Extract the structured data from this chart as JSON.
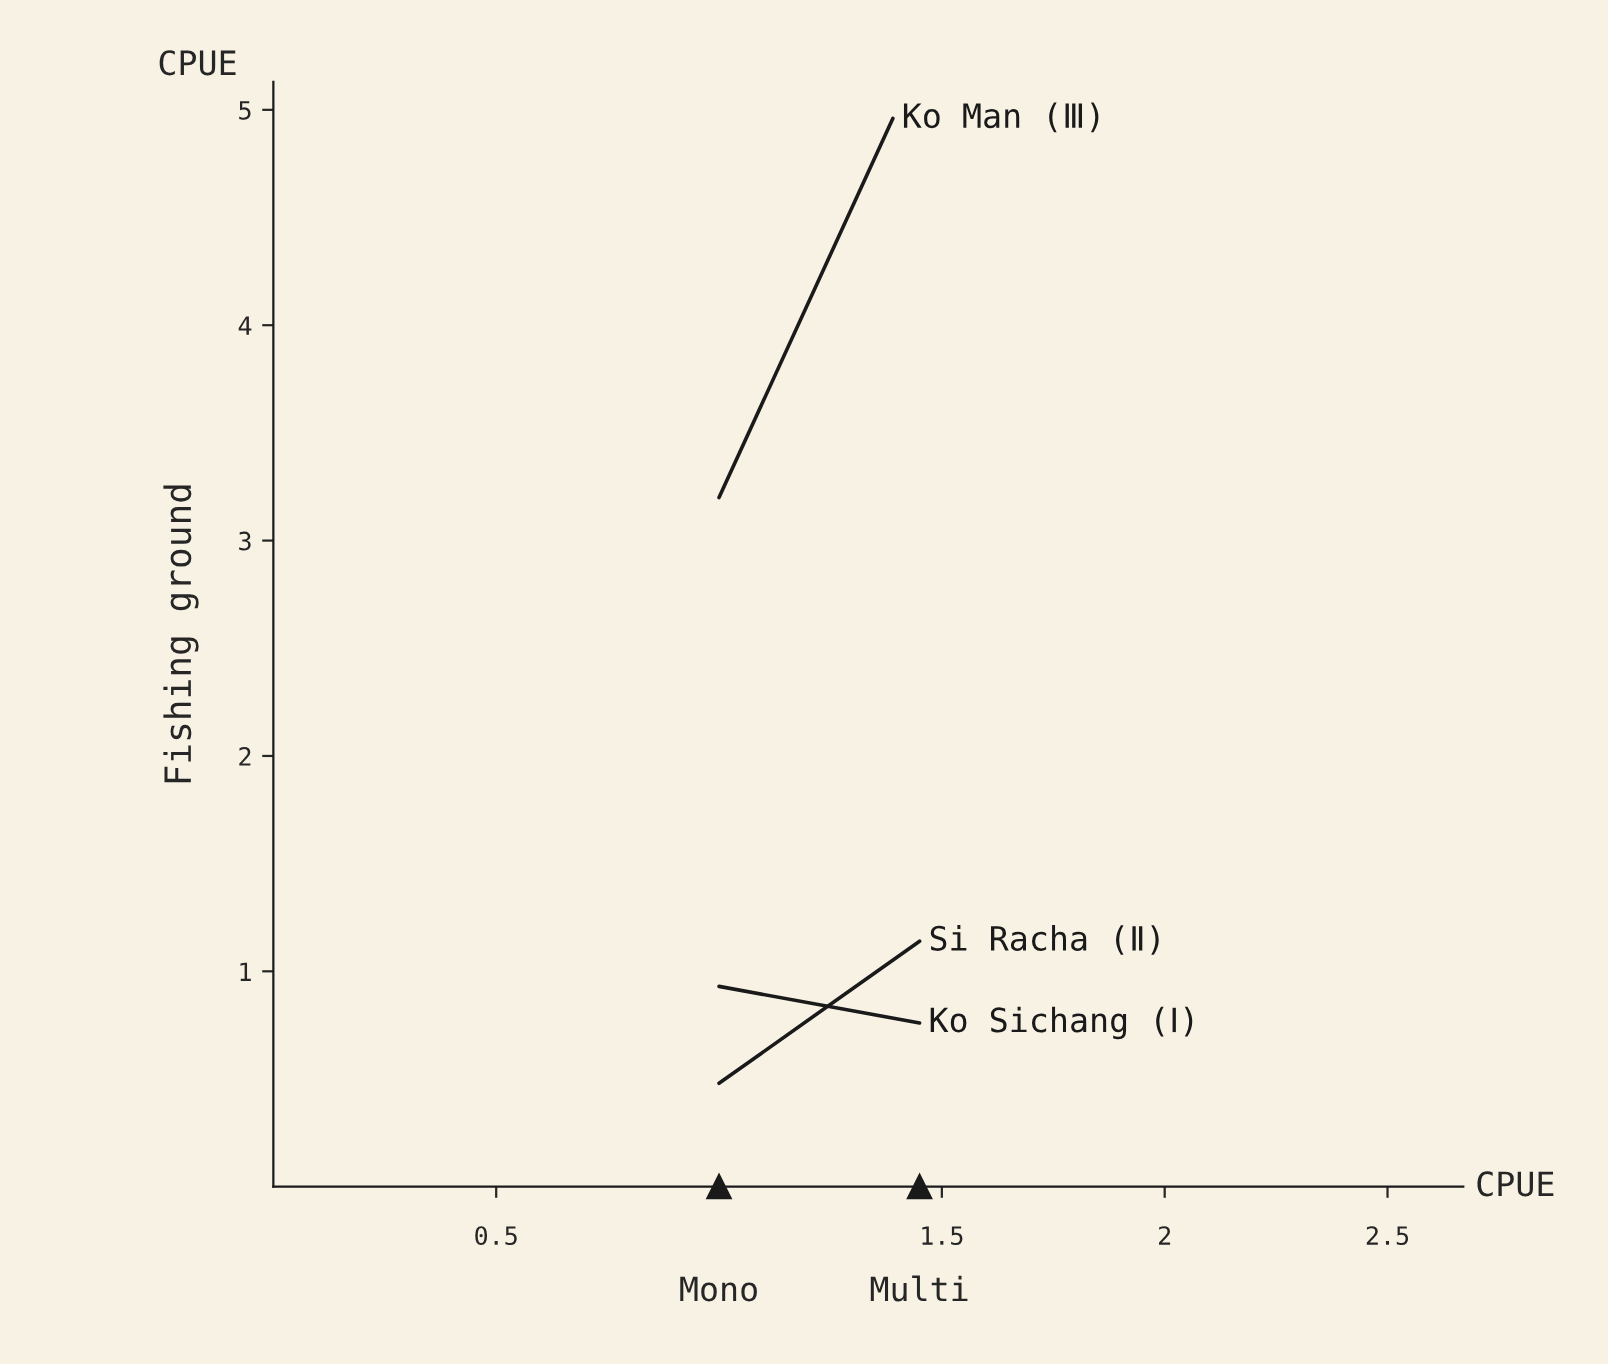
{
  "chart_data": {
    "type": "line",
    "ylabel": "Fishing ground",
    "xlabel": "CPUE",
    "annotations": [
      "CPUE",
      "Mono",
      "Multi"
    ],
    "series": [
      {
        "name": "Ko Man (Ⅲ)",
        "color": "#1a1a1a",
        "x": [
          1.0,
          1.39
        ],
        "values": [
          3.2,
          4.96
        ]
      },
      {
        "name": "Si Racha (Ⅱ)",
        "color": "#1a1a1a",
        "x": [
          1.0,
          1.45
        ],
        "values": [
          0.48,
          1.14
        ]
      },
      {
        "name": "Ko Sichang (Ⅰ)",
        "color": "#1a1a1a",
        "x": [
          1.0,
          1.45
        ],
        "values": [
          0.93,
          0.76
        ]
      }
    ],
    "xlim": [
      0,
      2.67
    ],
    "ylim": [
      0,
      5.13
    ],
    "xticks": [
      0.5,
      {
        "value": 1,
        "label": null
      },
      1.5,
      2,
      2.5
    ],
    "yticks": [
      1,
      2,
      3,
      4,
      5
    ],
    "grid": false,
    "legend": false,
    "marker": "none",
    "line_style": "solid"
  }
}
